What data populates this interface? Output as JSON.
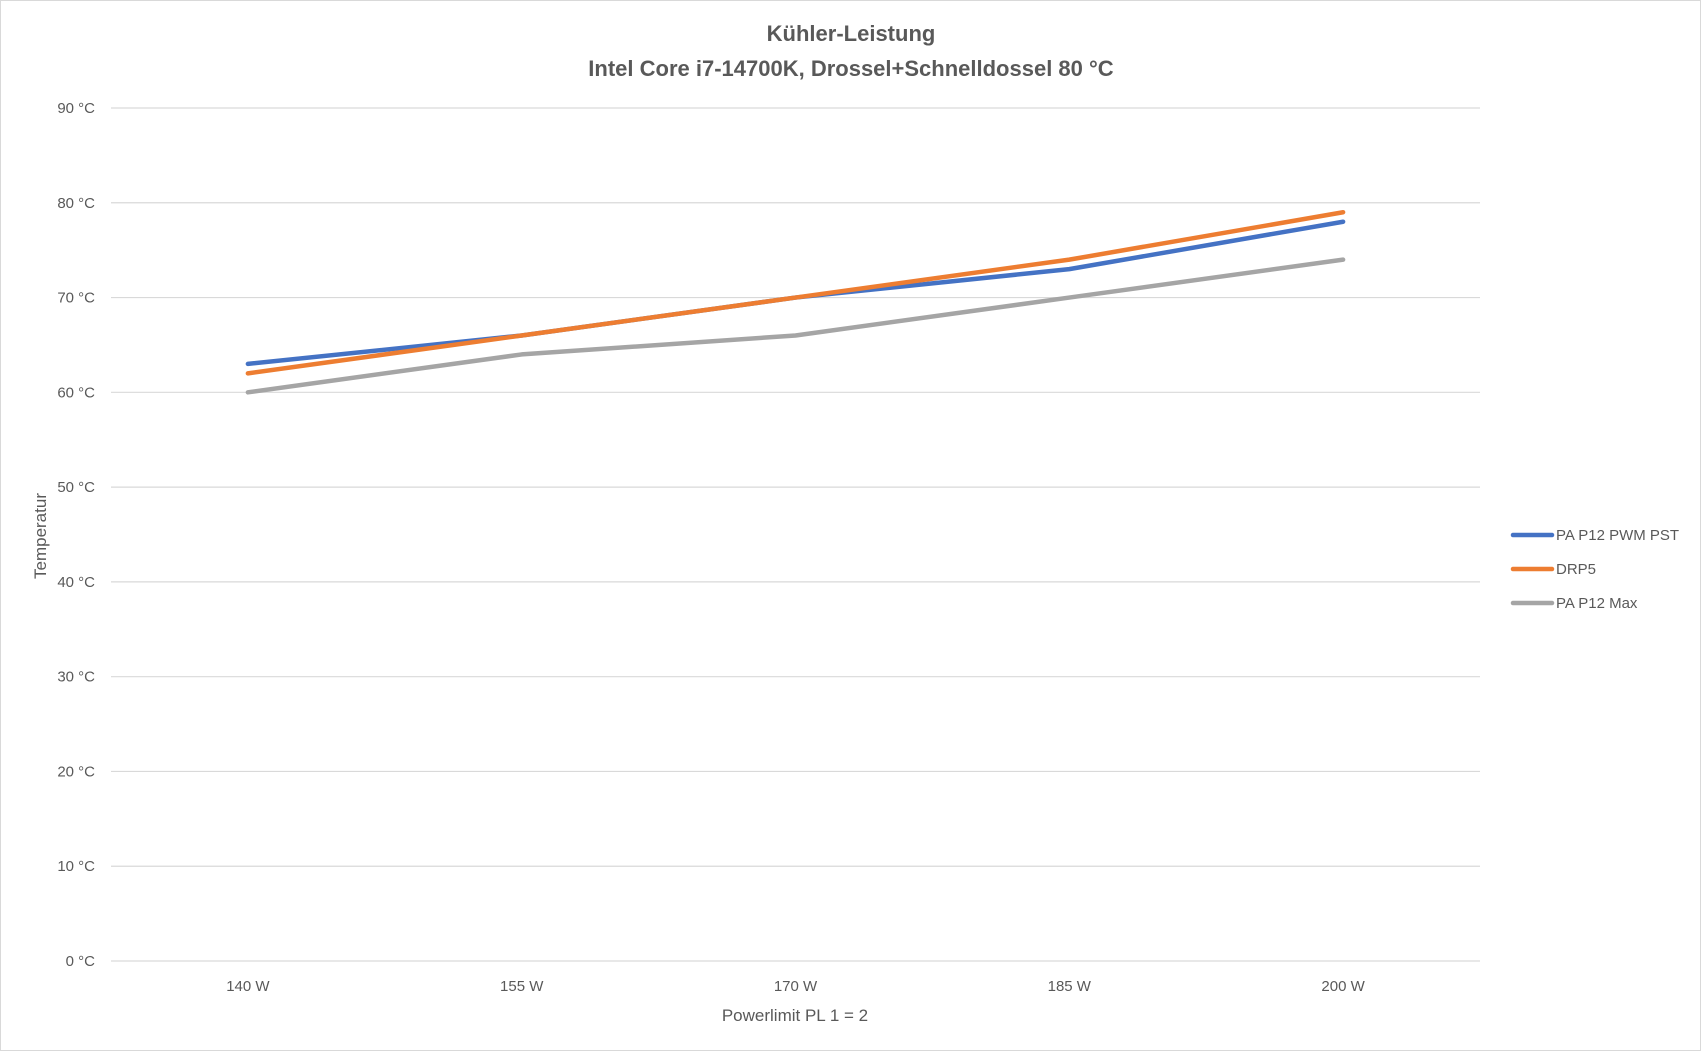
{
  "chart_data": {
    "type": "line",
    "title": "Kühler-Leistung",
    "subtitle": "Intel Core i7-14700K, Drossel+Schnelldossel 80 °C",
    "xlabel": "Powerlimit PL 1 = 2",
    "ylabel": "Temperatur",
    "categories": [
      "140 W",
      "155 W",
      "170 W",
      "185 W",
      "200 W"
    ],
    "ylim": [
      0,
      90
    ],
    "yticks": [
      0,
      10,
      20,
      30,
      40,
      50,
      60,
      70,
      80,
      90
    ],
    "ytick_labels": [
      "0 °C",
      "10 °C",
      "20 °C",
      "30 °C",
      "40 °C",
      "50 °C",
      "60 °C",
      "70 °C",
      "80 °C",
      "90 °C"
    ],
    "grid": true,
    "legend_position": "right",
    "series": [
      {
        "name": "PA P12 PWM PST",
        "color": "#4472c4",
        "values": [
          63,
          66,
          70,
          73,
          78
        ]
      },
      {
        "name": "DRP5",
        "color": "#ed7d31",
        "values": [
          62,
          66,
          70,
          74,
          79
        ]
      },
      {
        "name": "PA P12 Max",
        "color": "#a5a5a5",
        "values": [
          60,
          64,
          66,
          70,
          74
        ]
      }
    ]
  }
}
